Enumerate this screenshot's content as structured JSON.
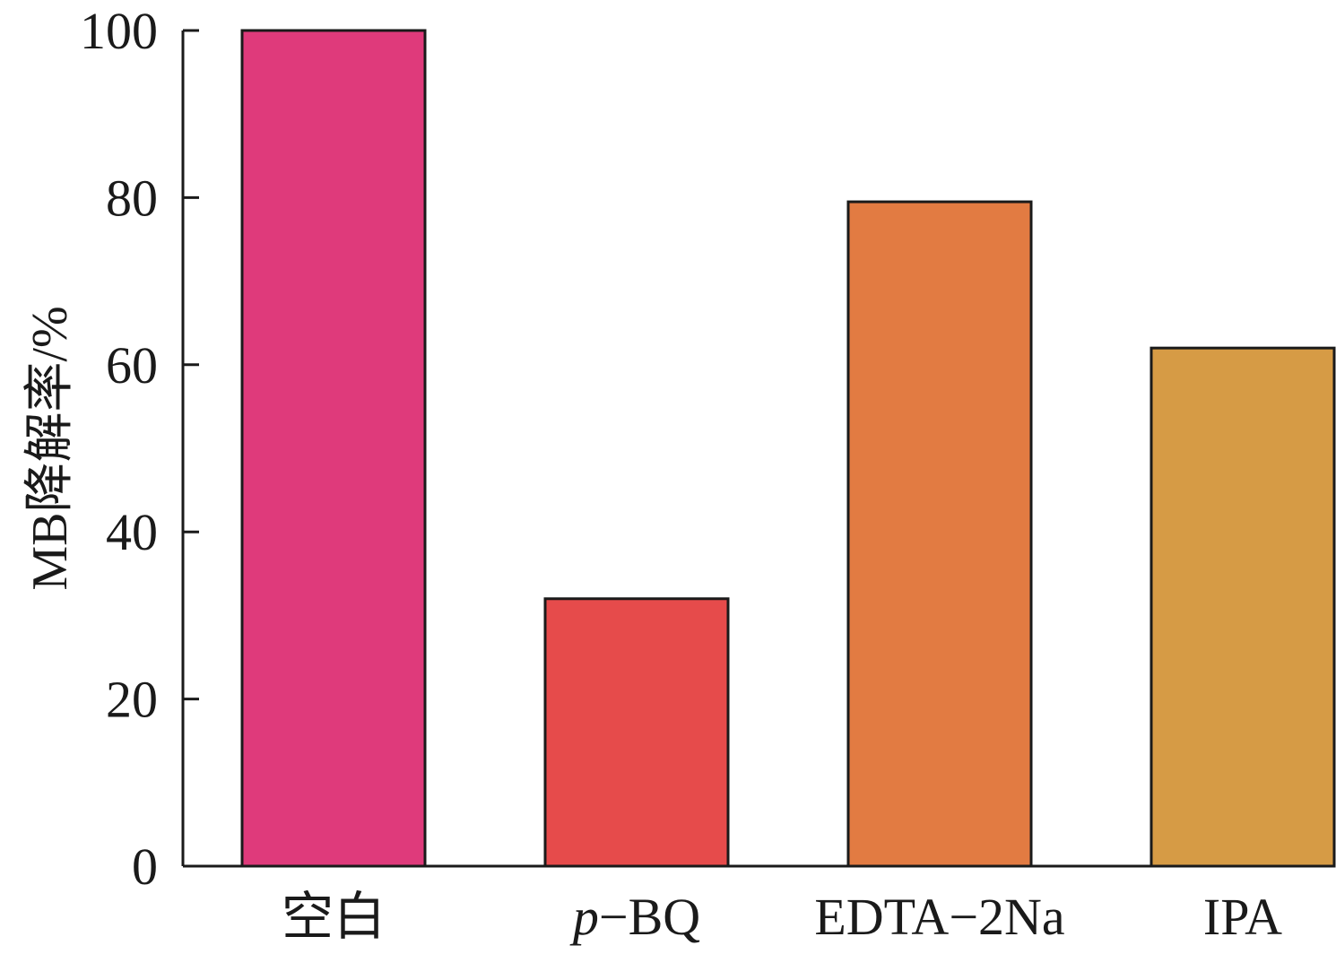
{
  "chart_data": {
    "type": "bar",
    "categories": [
      "空白",
      "p−BQ",
      "EDTA−2Na",
      "IPA"
    ],
    "category_labels": [
      {
        "parts": [
          {
            "text": "空白",
            "italic": false
          }
        ]
      },
      {
        "parts": [
          {
            "text": "p",
            "italic": true
          },
          {
            "text": "−BQ",
            "italic": false
          }
        ]
      },
      {
        "parts": [
          {
            "text": "EDTA−2Na",
            "italic": false
          }
        ]
      },
      {
        "parts": [
          {
            "text": "IPA",
            "italic": false
          }
        ]
      }
    ],
    "values": [
      100,
      32,
      79.5,
      62
    ],
    "colors": [
      "#DF3A7B",
      "#E64B4B",
      "#E27B42",
      "#D69B45"
    ],
    "ylabel": "MB降解率/%",
    "xlabel": "",
    "ylim": [
      0,
      100
    ],
    "yticks": [
      0,
      20,
      40,
      60,
      80,
      100
    ],
    "grid": false
  }
}
